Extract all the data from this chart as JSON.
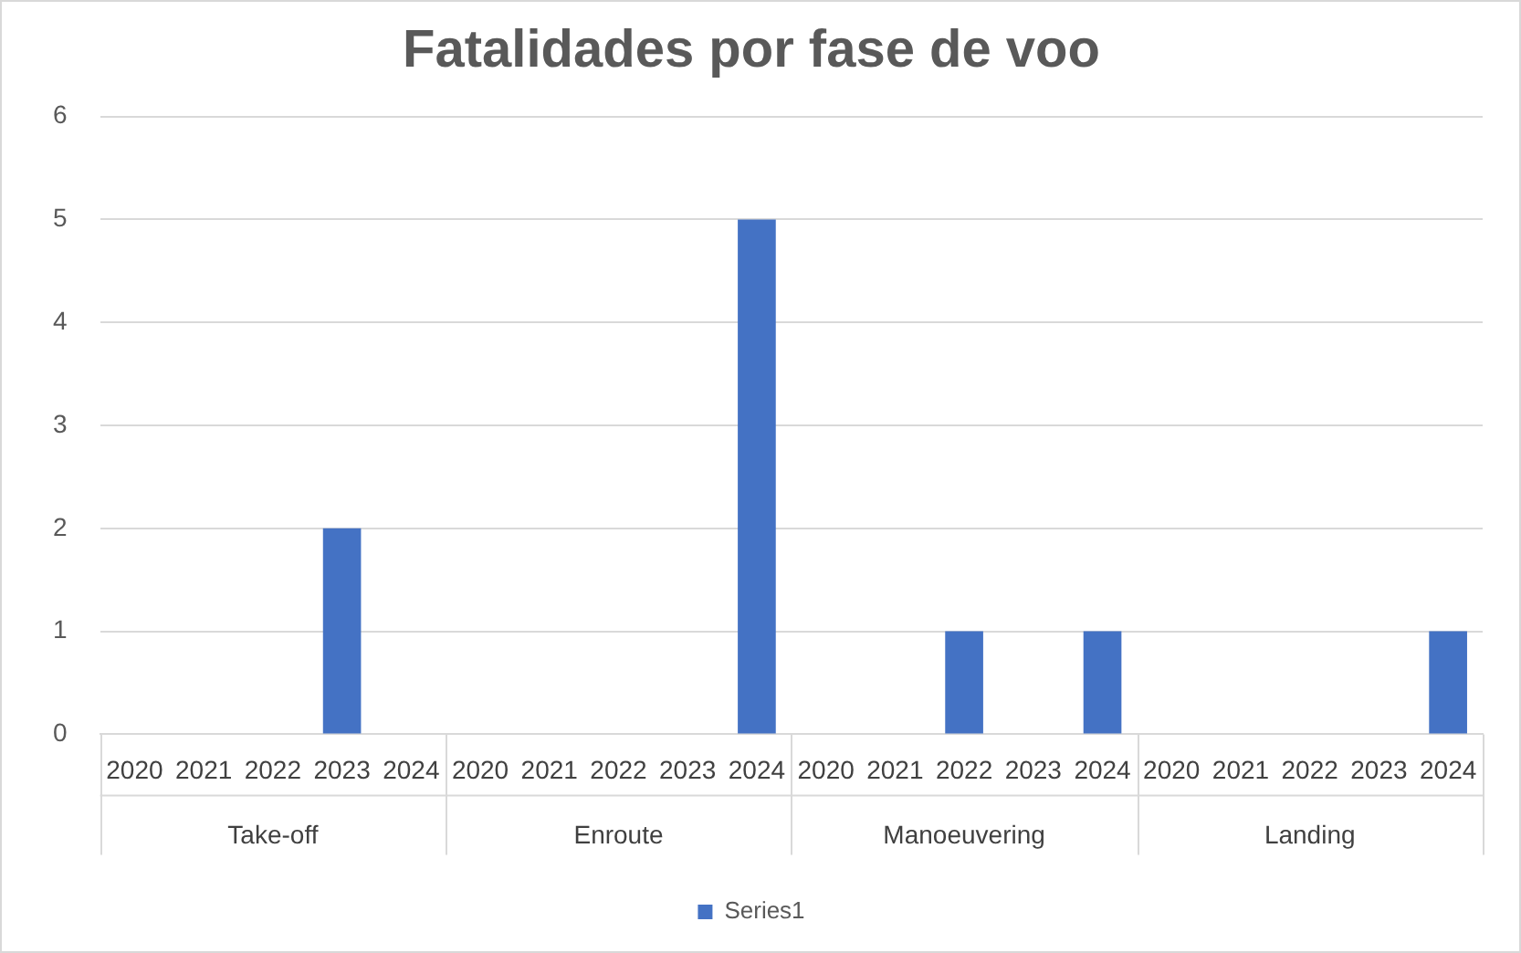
{
  "chart_data": {
    "type": "bar",
    "title": "Fatalidades por fase de voo",
    "categories": [
      "2020",
      "2021",
      "2022",
      "2023",
      "2024",
      "2020",
      "2021",
      "2022",
      "2023",
      "2024",
      "2020",
      "2021",
      "2022",
      "2023",
      "2024",
      "2020",
      "2021",
      "2022",
      "2023",
      "2024"
    ],
    "series": [
      {
        "name": "Series1",
        "color": "#4472c4",
        "values": [
          null,
          null,
          null,
          2,
          null,
          null,
          null,
          null,
          null,
          5,
          null,
          null,
          1,
          null,
          1,
          null,
          null,
          null,
          null,
          1
        ]
      }
    ],
    "annotations": [
      "Take-off",
      "Enroute",
      "Manoeuvering",
      "Landing"
    ],
    "ylim": [
      0,
      6
    ],
    "yticks": [
      0,
      1,
      2,
      3,
      4,
      5,
      6
    ],
    "grid": "y",
    "legend": "bottom"
  }
}
